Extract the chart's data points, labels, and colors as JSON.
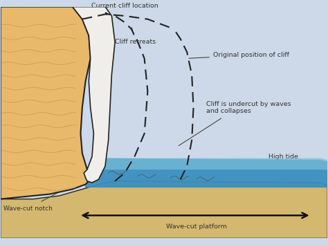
{
  "bg_color": "#cdd9e8",
  "sand_color": "#e8b96a",
  "platform_color": "#d4b870",
  "water_color": "#3a8fbf",
  "water_top_color": "#7bbfd8",
  "grass_color": "#2a5e1e",
  "cliff_face_color": "#f0eeea",
  "outline_color": "#222222",
  "text_color": "#333333",
  "dashed_color": "#222222",
  "arrow_color": "#111111",
  "labels": {
    "current_cliff": "Current cliff location",
    "cliff_retreats": "Cliff retreats",
    "original_position": "Original position of cliff",
    "undercut": "Cliff is undercut by waves\nand collapses",
    "high_tide": "High tide",
    "wave_cut_notch": "Wave-cut notch",
    "wave_cut_platform": "Wave-cut platform"
  },
  "figsize": [
    4.74,
    3.54
  ],
  "dpi": 100
}
